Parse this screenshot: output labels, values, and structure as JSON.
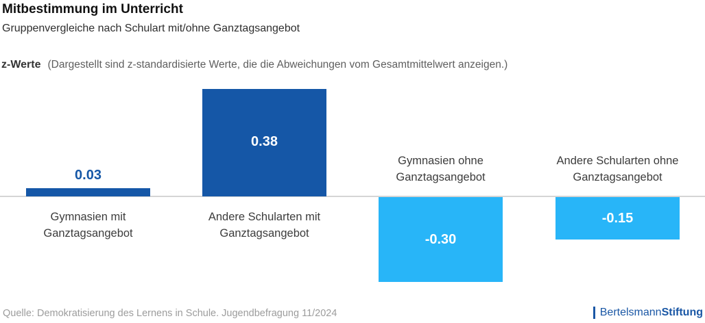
{
  "header": {
    "title": "Mitbestimmung im Unterricht",
    "subtitle": "Gruppenvergleiche nach Schulart mit/ohne Ganztagsangebot",
    "y_axis_label": "z-Werte",
    "y_axis_note": "(Dargestellt sind z-standardisierte Werte, die die Abweichungen vom Gesamtmittelwert anzeigen.)"
  },
  "chart_data": {
    "type": "bar",
    "title": "Mitbestimmung im Unterricht",
    "subtitle": "Gruppenvergleiche nach Schulart mit/ohne Ganztagsangebot",
    "ylabel": "z-Werte",
    "xlabel": "",
    "baseline": 0,
    "ylim": [
      -0.45,
      0.45
    ],
    "grid": false,
    "legend": false,
    "categories": [
      "Gymnasien mit Ganztagsangebot",
      "Andere Schularten mit Ganztagsangebot",
      "Gymnasien ohne Ganztagsangebot",
      "Andere Schularten ohne Ganztagsangebot"
    ],
    "values": [
      0.03,
      0.38,
      -0.3,
      -0.15
    ],
    "bars": [
      {
        "label_line1": "Gymnasien mit",
        "label_line2": "Ganztagsangebot",
        "value": 0.03,
        "display": "0.03",
        "color": "#1557A7"
      },
      {
        "label_line1": "Andere Schularten mit",
        "label_line2": "Ganztagsangebot",
        "value": 0.38,
        "display": "0.38",
        "color": "#1557A7"
      },
      {
        "label_line1": "Gymnasien ohne",
        "label_line2": "Ganztagsangebot",
        "value": -0.3,
        "display": "-0.30",
        "color": "#28B5F8"
      },
      {
        "label_line1": "Andere Schularten ohne",
        "label_line2": "Ganztagsangebot",
        "value": -0.15,
        "display": "-0.15",
        "color": "#28B5F8"
      }
    ],
    "colors": {
      "positive": "#1557A7",
      "negative": "#28B5F8"
    }
  },
  "footer": {
    "source": "Quelle: Demokratisierung des Lernens in Schule. Jugendbefragung 11/2024",
    "logo": {
      "regular": "Bertelsmann",
      "bold": "Stiftung",
      "color": "#1A57A5"
    }
  }
}
